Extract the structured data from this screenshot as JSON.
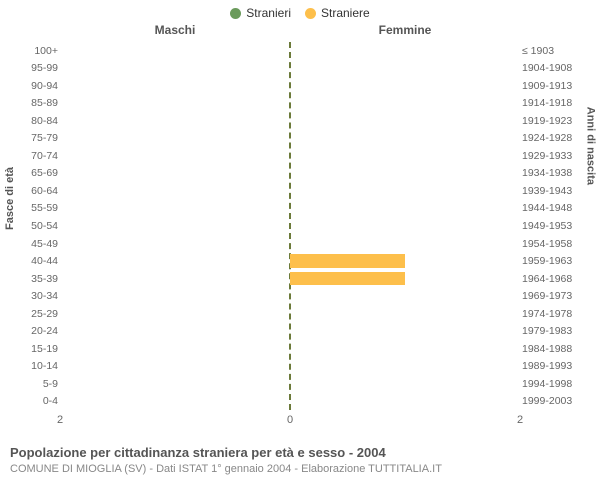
{
  "legend": {
    "items": [
      {
        "label": "Stranieri",
        "color": "#6a9a5b"
      },
      {
        "label": "Straniere",
        "color": "#fdbf4b"
      }
    ]
  },
  "chart": {
    "type": "bar-pyramid",
    "male_header": "Maschi",
    "female_header": "Femmine",
    "left_axis_label": "Fasce di età",
    "right_axis_label": "Anni di nascita",
    "xlim_each_side": 2,
    "xticks": {
      "left_far": "2",
      "center": "0",
      "right_far": "2"
    },
    "bar_color_male": "#6a9a5b",
    "bar_color_female": "#fdbf4b",
    "background_color": "#ffffff",
    "centerline_color": "#6b7a3a",
    "tick_font_color": "#666666",
    "tick_fontsize": 10.5,
    "header_fontsize": 12,
    "rows": [
      {
        "age": "100+",
        "birth": "≤ 1903",
        "m": 0,
        "f": 0
      },
      {
        "age": "95-99",
        "birth": "1904-1908",
        "m": 0,
        "f": 0
      },
      {
        "age": "90-94",
        "birth": "1909-1913",
        "m": 0,
        "f": 0
      },
      {
        "age": "85-89",
        "birth": "1914-1918",
        "m": 0,
        "f": 0
      },
      {
        "age": "80-84",
        "birth": "1919-1923",
        "m": 0,
        "f": 0
      },
      {
        "age": "75-79",
        "birth": "1924-1928",
        "m": 0,
        "f": 0
      },
      {
        "age": "70-74",
        "birth": "1929-1933",
        "m": 0,
        "f": 0
      },
      {
        "age": "65-69",
        "birth": "1934-1938",
        "m": 0,
        "f": 0
      },
      {
        "age": "60-64",
        "birth": "1939-1943",
        "m": 0,
        "f": 0
      },
      {
        "age": "55-59",
        "birth": "1944-1948",
        "m": 0,
        "f": 0
      },
      {
        "age": "50-54",
        "birth": "1949-1953",
        "m": 0,
        "f": 0
      },
      {
        "age": "45-49",
        "birth": "1954-1958",
        "m": 0,
        "f": 0
      },
      {
        "age": "40-44",
        "birth": "1959-1963",
        "m": 0,
        "f": 1
      },
      {
        "age": "35-39",
        "birth": "1964-1968",
        "m": 0,
        "f": 1
      },
      {
        "age": "30-34",
        "birth": "1969-1973",
        "m": 0,
        "f": 0
      },
      {
        "age": "25-29",
        "birth": "1974-1978",
        "m": 0,
        "f": 0
      },
      {
        "age": "20-24",
        "birth": "1979-1983",
        "m": 0,
        "f": 0
      },
      {
        "age": "15-19",
        "birth": "1984-1988",
        "m": 0,
        "f": 0
      },
      {
        "age": "10-14",
        "birth": "1989-1993",
        "m": 0,
        "f": 0
      },
      {
        "age": "5-9",
        "birth": "1994-1998",
        "m": 0,
        "f": 0
      },
      {
        "age": "0-4",
        "birth": "1999-2003",
        "m": 0,
        "f": 0
      }
    ]
  },
  "footer": {
    "line1": "Popolazione per cittadinanza straniera per età e sesso - 2004",
    "line2": "COMUNE DI MIOGLIA (SV) - Dati ISTAT 1° gennaio 2004 - Elaborazione TUTTITALIA.IT"
  }
}
